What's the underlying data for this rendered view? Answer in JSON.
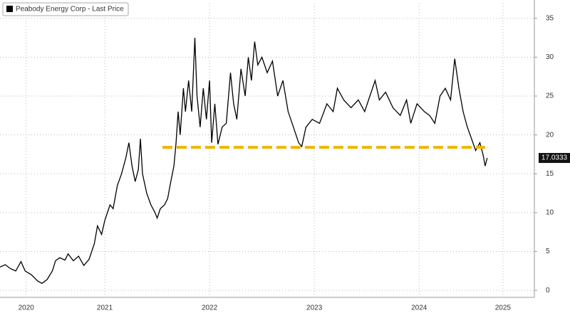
{
  "chart_data": {
    "type": "line",
    "series": [
      {
        "name": "Peabody Energy Corp - Last Price",
        "color": "#000000",
        "x": [
          2020.5,
          2020.55,
          2020.6,
          2020.65,
          2020.7,
          2020.74,
          2020.8,
          2020.86,
          2020.9,
          2020.95,
          2021.0,
          2021.03,
          2021.07,
          2021.12,
          2021.15,
          2021.2,
          2021.25,
          2021.3,
          2021.35,
          2021.4,
          2021.43,
          2021.47,
          2021.5,
          2021.55,
          2021.58,
          2021.62,
          2021.66,
          2021.7,
          2021.73,
          2021.76,
          2021.79,
          2021.82,
          2021.84,
          2021.86,
          2021.9,
          2021.94,
          2021.98,
          2022.0,
          2022.03,
          2022.07,
          2022.1,
          2022.13,
          2022.16,
          2022.18,
          2022.2,
          2022.22,
          2022.25,
          2022.27,
          2022.3,
          2022.33,
          2022.36,
          2022.38,
          2022.41,
          2022.44,
          2022.47,
          2022.5,
          2022.52,
          2022.55,
          2022.58,
          2022.62,
          2022.66,
          2022.7,
          2022.73,
          2022.76,
          2022.8,
          2022.84,
          2022.87,
          2022.9,
          2022.93,
          2022.96,
          2023.0,
          2023.05,
          2023.1,
          2023.15,
          2023.2,
          2023.25,
          2023.3,
          2023.35,
          2023.38,
          2023.42,
          2023.48,
          2023.55,
          2023.62,
          2023.68,
          2023.72,
          2023.78,
          2023.85,
          2023.92,
          2023.98,
          2024.03,
          2024.08,
          2024.12,
          2024.18,
          2024.25,
          2024.32,
          2024.38,
          2024.42,
          2024.48,
          2024.55,
          2024.6,
          2024.65,
          2024.7,
          2024.75,
          2024.8,
          2024.84,
          2024.88,
          2024.92,
          2024.96,
          2025.0,
          2025.04,
          2025.08,
          2025.11,
          2025.13,
          2025.15
        ],
        "values": [
          3.0,
          3.3,
          2.8,
          2.5,
          3.7,
          2.5,
          2.0,
          1.2,
          0.9,
          1.4,
          2.5,
          3.8,
          4.2,
          3.9,
          4.7,
          3.8,
          4.4,
          3.2,
          4.0,
          6.0,
          8.3,
          7.2,
          9.0,
          11.0,
          10.5,
          13.5,
          15.0,
          17.0,
          19.0,
          16.0,
          14.0,
          15.5,
          19.5,
          15.0,
          12.5,
          11.0,
          10.0,
          9.3,
          10.5,
          11.0,
          11.8,
          14.0,
          16.0,
          19.0,
          23.0,
          20.0,
          26.0,
          23.0,
          27.0,
          23.0,
          32.5,
          25.0,
          21.0,
          26.0,
          22.0,
          27.0,
          19.0,
          24.0,
          18.8,
          21.0,
          21.5,
          28.0,
          24.0,
          22.0,
          28.5,
          25.0,
          30.0,
          27.0,
          32.0,
          29.0,
          30.0,
          28.0,
          29.5,
          25.0,
          27.0,
          23.0,
          21.0,
          19.0,
          18.5,
          21.0,
          22.0,
          21.5,
          24.0,
          23.0,
          26.0,
          24.5,
          23.5,
          24.5,
          23.0,
          25.0,
          27.0,
          24.5,
          25.5,
          23.5,
          22.5,
          24.5,
          21.5,
          24.0,
          23.0,
          22.5,
          21.5,
          25.0,
          26.0,
          24.5,
          29.8,
          26.0,
          23.0,
          21.0,
          19.5,
          18.0,
          19.0,
          17.5,
          16.0,
          17.0333
        ]
      }
    ],
    "last_price": 17.0333,
    "support_line": {
      "value": 18.4,
      "x": [
        2022.05,
        2025.13
      ],
      "color": "#f0b400"
    },
    "xlim": [
      2020.5,
      2025.6
    ],
    "xticks": [
      {
        "value": 2020.75,
        "label": "2020"
      },
      {
        "value": 2021.5,
        "label": "2021"
      },
      {
        "value": 2022.5,
        "label": "2022"
      },
      {
        "value": 2023.5,
        "label": "2023"
      },
      {
        "value": 2024.5,
        "label": "2024"
      },
      {
        "value": 2025.3,
        "label": "2025"
      }
    ],
    "ylim": [
      -0.9,
      36.9
    ],
    "yticks": [
      0,
      5,
      10,
      15,
      20,
      25,
      30,
      35
    ],
    "grid": true
  }
}
